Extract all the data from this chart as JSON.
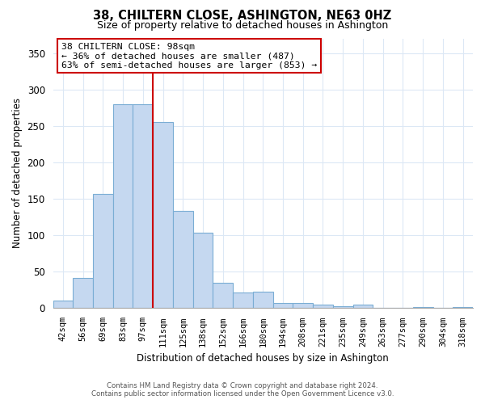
{
  "title": "38, CHILTERN CLOSE, ASHINGTON, NE63 0HZ",
  "subtitle": "Size of property relative to detached houses in Ashington",
  "xlabel": "Distribution of detached houses by size in Ashington",
  "ylabel": "Number of detached properties",
  "bar_labels": [
    "42sqm",
    "56sqm",
    "69sqm",
    "83sqm",
    "97sqm",
    "111sqm",
    "125sqm",
    "138sqm",
    "152sqm",
    "166sqm",
    "180sqm",
    "194sqm",
    "208sqm",
    "221sqm",
    "235sqm",
    "249sqm",
    "263sqm",
    "277sqm",
    "290sqm",
    "304sqm",
    "318sqm"
  ],
  "bar_values": [
    10,
    42,
    157,
    280,
    280,
    255,
    133,
    103,
    35,
    22,
    23,
    7,
    7,
    5,
    3,
    5,
    0,
    0,
    2,
    0,
    2
  ],
  "bar_color": "#c5d8f0",
  "bar_edge_color": "#7aadd4",
  "vline_color": "#cc0000",
  "ylim": [
    0,
    370
  ],
  "yticks": [
    0,
    50,
    100,
    150,
    200,
    250,
    300,
    350
  ],
  "annotation_title": "38 CHILTERN CLOSE: 98sqm",
  "annotation_line1": "← 36% of detached houses are smaller (487)",
  "annotation_line2": "63% of semi-detached houses are larger (853) →",
  "annotation_box_color": "#ffffff",
  "annotation_box_edge": "#cc0000",
  "footer_line1": "Contains HM Land Registry data © Crown copyright and database right 2024.",
  "footer_line2": "Contains public sector information licensed under the Open Government Licence v3.0.",
  "background_color": "#ffffff",
  "grid_color": "#dce8f5"
}
